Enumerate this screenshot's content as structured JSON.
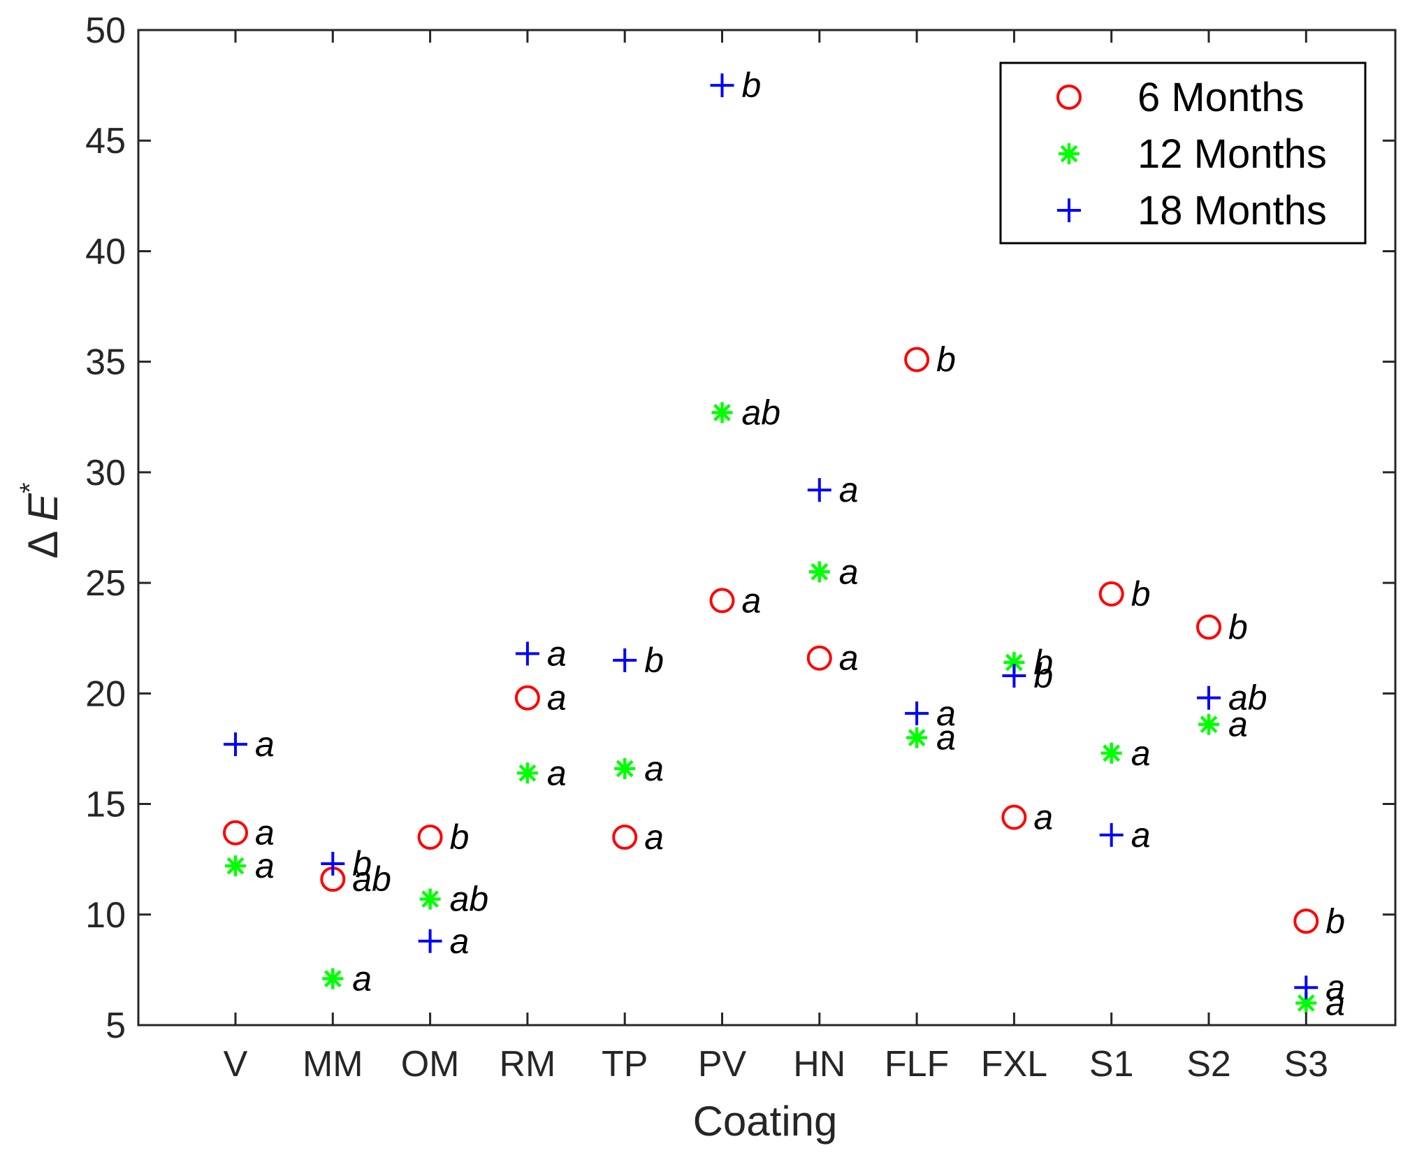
{
  "chart_data": {
    "type": "scatter",
    "title": "",
    "xlabel": "Coating",
    "ylabel": {
      "delta": "Δ",
      "symbol": "E",
      "superscript": "*"
    },
    "ylim": [
      5,
      50
    ],
    "yticks": [
      5,
      10,
      15,
      20,
      25,
      30,
      35,
      40,
      45,
      50
    ],
    "categories": [
      "V",
      "MM",
      "OM",
      "RM",
      "TP",
      "PV",
      "HN",
      "FLF",
      "FXL",
      "S1",
      "S2",
      "S3"
    ],
    "legend_position": "top-right",
    "series": [
      {
        "name": "6 Months",
        "marker": "circle",
        "color": "#ff0000",
        "values": [
          13.7,
          11.6,
          13.5,
          19.8,
          13.5,
          24.2,
          21.6,
          35.1,
          14.4,
          24.5,
          23.0,
          9.7
        ],
        "letters": [
          "a",
          "ab",
          "b",
          "a",
          "a",
          "a",
          "a",
          "b",
          "a",
          "b",
          "b",
          "b"
        ]
      },
      {
        "name": "12 Months",
        "marker": "asterisk",
        "color": "#00ff00",
        "values": [
          12.2,
          7.1,
          10.7,
          16.4,
          16.6,
          32.7,
          25.5,
          18.0,
          21.4,
          17.3,
          18.6,
          6.0
        ],
        "letters": [
          "a",
          "a",
          "ab",
          "a",
          "a",
          "ab",
          "a",
          "a",
          "b",
          "a",
          "a",
          "a"
        ]
      },
      {
        "name": "18 Months",
        "marker": "plus",
        "color": "#0000ff",
        "values": [
          17.7,
          12.3,
          8.8,
          21.8,
          21.5,
          47.5,
          29.2,
          19.1,
          20.8,
          13.6,
          19.8,
          6.7
        ],
        "letters": [
          "a",
          "b",
          "a",
          "a",
          "b",
          "b",
          "a",
          "a",
          "b",
          "a",
          "ab",
          "a"
        ]
      }
    ]
  }
}
